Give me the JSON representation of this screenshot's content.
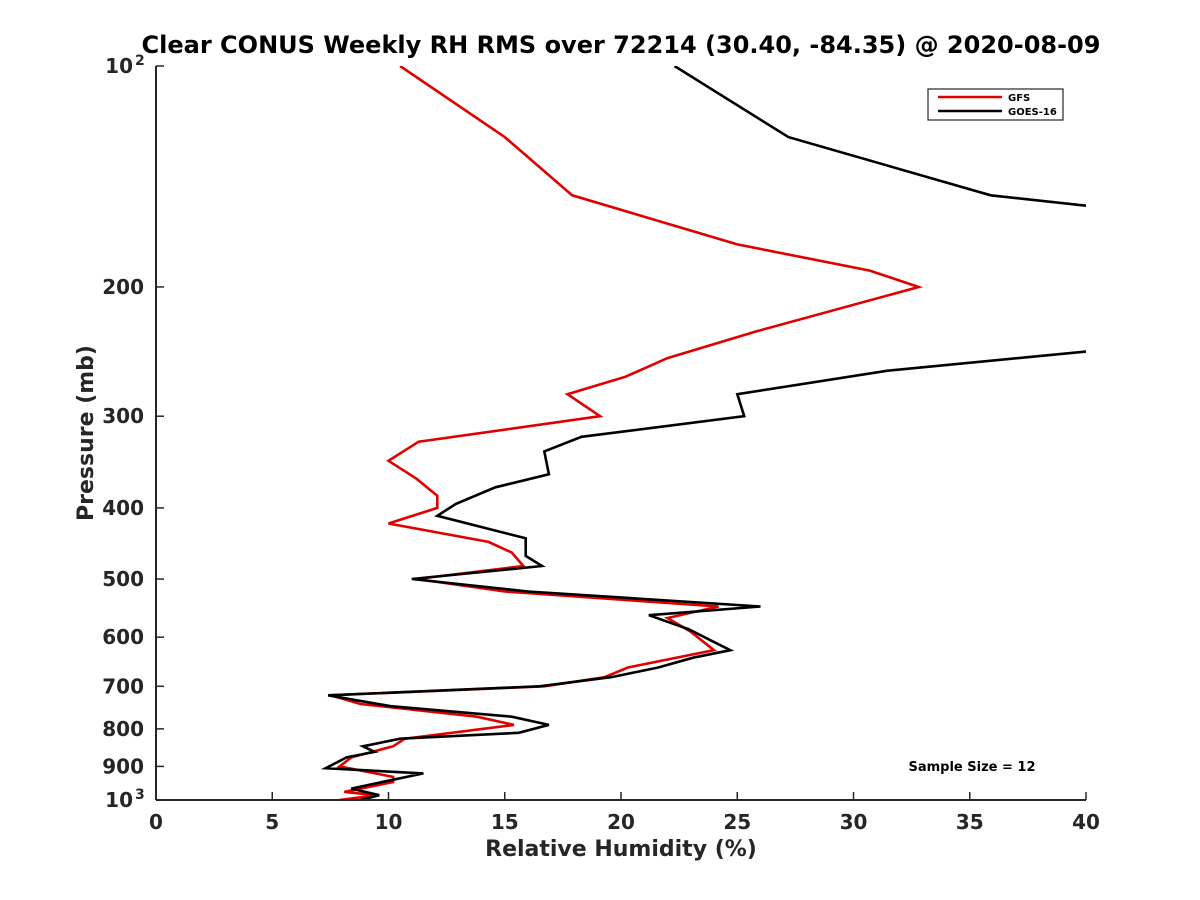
{
  "chart_data": {
    "type": "line",
    "title": "Clear CONUS Weekly RH RMS over 72214 (30.40, -84.35) @ 2020-08-09",
    "xlabel": "Relative Humidity (%)",
    "ylabel": "Pressure (mb)",
    "xlim": [
      0,
      40
    ],
    "ylim": [
      100,
      1000
    ],
    "yscale": "log",
    "y_reversed": true,
    "xticks": [
      0,
      5,
      10,
      15,
      20,
      25,
      30,
      35,
      40
    ],
    "yticks": [
      {
        "value": 100,
        "label": "10",
        "exp": "2"
      },
      {
        "value": 200,
        "label": "200",
        "exp": ""
      },
      {
        "value": 300,
        "label": "300",
        "exp": ""
      },
      {
        "value": 400,
        "label": "400",
        "exp": ""
      },
      {
        "value": 500,
        "label": "500",
        "exp": ""
      },
      {
        "value": 600,
        "label": "600",
        "exp": ""
      },
      {
        "value": 700,
        "label": "700",
        "exp": ""
      },
      {
        "value": 800,
        "label": "800",
        "exp": ""
      },
      {
        "value": 900,
        "label": "900",
        "exp": ""
      },
      {
        "value": 1000,
        "label": "10",
        "exp": "3"
      }
    ],
    "legend_position": "top-right",
    "annotation": "Sample Size = 12",
    "series": [
      {
        "name": "GFS",
        "color": "#e00000",
        "points": [
          [
            10.5,
            100
          ],
          [
            15,
            125
          ],
          [
            17.9,
            150
          ],
          [
            25,
            175
          ],
          [
            30.7,
            190
          ],
          [
            32.8,
            200
          ],
          [
            25.8,
            230
          ],
          [
            22,
            250
          ],
          [
            20.2,
            265
          ],
          [
            17.7,
            280
          ],
          [
            19.1,
            300
          ],
          [
            11.3,
            325
          ],
          [
            10.0,
            345
          ],
          [
            11.2,
            365
          ],
          [
            12.1,
            385
          ],
          [
            12.1,
            400
          ],
          [
            10.0,
            420
          ],
          [
            14.3,
            445
          ],
          [
            15.3,
            460
          ],
          [
            15.8,
            480
          ],
          [
            11.2,
            500
          ],
          [
            15.0,
            520
          ],
          [
            24.2,
            545
          ],
          [
            22.0,
            565
          ],
          [
            23.0,
            590
          ],
          [
            24.0,
            625
          ],
          [
            20.3,
            660
          ],
          [
            19.3,
            680
          ],
          [
            16.7,
            700
          ],
          [
            7.5,
            720
          ],
          [
            8.8,
            740
          ],
          [
            13.8,
            770
          ],
          [
            15.4,
            790
          ],
          [
            10.7,
            825
          ],
          [
            10.2,
            845
          ],
          [
            8.4,
            875
          ],
          [
            7.9,
            900
          ],
          [
            10.2,
            930
          ],
          [
            10.2,
            945
          ],
          [
            8.1,
            975
          ],
          [
            9.5,
            985
          ],
          [
            7.9,
            1000
          ]
        ]
      },
      {
        "name": "GOES-16",
        "color": "#000000",
        "points": [
          [
            22.3,
            100
          ],
          [
            27.2,
            125
          ],
          [
            35.9,
            150
          ],
          [
            40,
            155
          ],
          [
            null,
            null
          ],
          [
            40,
            245
          ],
          [
            31.5,
            260
          ],
          [
            25.0,
            280
          ],
          [
            25.3,
            300
          ],
          [
            18.3,
            320
          ],
          [
            16.7,
            335
          ],
          [
            16.9,
            360
          ],
          [
            14.6,
            375
          ],
          [
            12.9,
            395
          ],
          [
            12.1,
            410
          ],
          [
            15.9,
            440
          ],
          [
            15.9,
            465
          ],
          [
            16.6,
            480
          ],
          [
            11.0,
            500
          ],
          [
            16.0,
            520
          ],
          [
            26.0,
            545
          ],
          [
            21.2,
            560
          ],
          [
            22.9,
            585
          ],
          [
            24.7,
            625
          ],
          [
            23.1,
            640
          ],
          [
            21.6,
            660
          ],
          [
            19.6,
            680
          ],
          [
            16.5,
            700
          ],
          [
            7.4,
            720
          ],
          [
            10.1,
            745
          ],
          [
            15.3,
            770
          ],
          [
            16.9,
            790
          ],
          [
            15.6,
            810
          ],
          [
            10.5,
            825
          ],
          [
            8.9,
            845
          ],
          [
            9.4,
            860
          ],
          [
            8.2,
            875
          ],
          [
            7.3,
            905
          ],
          [
            11.5,
            920
          ],
          [
            9.4,
            950
          ],
          [
            8.4,
            965
          ],
          [
            9.6,
            985
          ],
          [
            8.8,
            1000
          ]
        ]
      }
    ]
  }
}
